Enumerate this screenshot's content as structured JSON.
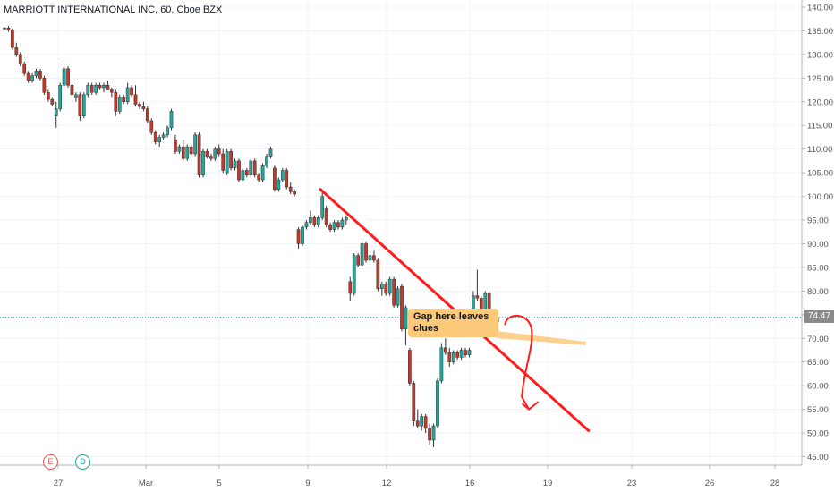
{
  "header": {
    "title": "MARRIOTT INTERNATIONAL INC, 60, Cboe BZX"
  },
  "last_price_label": "74.47",
  "annotation": {
    "text": "Gap here leaves clues"
  },
  "events": [
    {
      "label": "E",
      "color": "#e0564e"
    },
    {
      "label": "D",
      "color": "#26a69a"
    }
  ],
  "colors": {
    "up": "#26a69a",
    "down": "#c0392b",
    "drawing": "#ff1c1c",
    "callout": "#fbc97a",
    "price_line": "#26a69a"
  },
  "chart_data": {
    "type": "candlestick",
    "title": "MARRIOTT INTERNATIONAL INC, 60, Cboe BZX",
    "ylim": [
      43,
      140
    ],
    "y_ticks": [
      "45.00",
      "50.00",
      "55.00",
      "60.00",
      "65.00",
      "70.00",
      "75.00",
      "80.00",
      "85.00",
      "90.00",
      "95.00",
      "100.00",
      "105.00",
      "110.00",
      "115.00",
      "120.00",
      "125.00",
      "130.00",
      "135.00",
      "140.00"
    ],
    "x_ticks": [
      "27",
      "Mar",
      "5",
      "9",
      "12",
      "16",
      "19",
      "23",
      "26",
      "28"
    ],
    "last_price": 74.47,
    "candles": [
      [
        135.5,
        135.8,
        135.2,
        135.6
      ],
      [
        135.6,
        136,
        134.8,
        135.2
      ],
      [
        135.2,
        135.5,
        131,
        131.5
      ],
      [
        131.5,
        132.5,
        129.5,
        130
      ],
      [
        130,
        130.5,
        127.5,
        128
      ],
      [
        128,
        128.5,
        125.5,
        126
      ],
      [
        126,
        126.5,
        124,
        124.5
      ],
      [
        124.5,
        126,
        124,
        125.5
      ],
      [
        125.5,
        127,
        125,
        126.5
      ],
      [
        126.5,
        127,
        124.5,
        125
      ],
      [
        125,
        125.5,
        121.5,
        122
      ],
      [
        122,
        122.5,
        120,
        120.5
      ],
      [
        120.5,
        121,
        119,
        119.5
      ],
      [
        117,
        120,
        114.5,
        118.5
      ],
      [
        118.5,
        124,
        118,
        123.5
      ],
      [
        123.5,
        128,
        123,
        127
      ],
      [
        127,
        127.5,
        123,
        123.5
      ],
      [
        123.5,
        124,
        121,
        121.5
      ],
      [
        121,
        122,
        120,
        121.5
      ],
      [
        121.5,
        122,
        116,
        117
      ],
      [
        117,
        122,
        116.5,
        121.5
      ],
      [
        121.5,
        124,
        121,
        123.5
      ],
      [
        123.5,
        124,
        121.5,
        122
      ],
      [
        122,
        124,
        121.5,
        123.5
      ],
      [
        123.5,
        124,
        122.5,
        123
      ],
      [
        123,
        124,
        122,
        123.5
      ],
      [
        123.5,
        124.5,
        122.5,
        122.5
      ],
      [
        122.5,
        123,
        121,
        122
      ],
      [
        122,
        122.5,
        117,
        118
      ],
      [
        118,
        121.5,
        117.5,
        121
      ],
      [
        121,
        121.5,
        119.5,
        120
      ],
      [
        120,
        124,
        119.5,
        123
      ],
      [
        123,
        123.5,
        121,
        121.5
      ],
      [
        121.5,
        123.5,
        119,
        119.5
      ],
      [
        119.5,
        120,
        118.5,
        119
      ],
      [
        119,
        120,
        118,
        118.5
      ],
      [
        118.5,
        119,
        115.5,
        116
      ],
      [
        116,
        116.5,
        113,
        113.5
      ],
      [
        113.5,
        114,
        111,
        111.5
      ],
      [
        111.5,
        113,
        110.5,
        112.5
      ],
      [
        112.5,
        113.5,
        112,
        113
      ],
      [
        113,
        115,
        112.5,
        114.5
      ],
      [
        114.5,
        118.5,
        114,
        118
      ],
      [
        112,
        113,
        109,
        109.5
      ],
      [
        109.5,
        111,
        109,
        110.5
      ],
      [
        110.5,
        112,
        107.5,
        108
      ],
      [
        108,
        111,
        107.5,
        110.5
      ],
      [
        110.5,
        111,
        108.5,
        109
      ],
      [
        109,
        113.5,
        108.5,
        113
      ],
      [
        113,
        113.5,
        104,
        104.5
      ],
      [
        104.5,
        110,
        104,
        109.5
      ],
      [
        109.5,
        110,
        108,
        108.5
      ],
      [
        108.5,
        109,
        107.5,
        108
      ],
      [
        108,
        110.5,
        107.5,
        110
      ],
      [
        110,
        111,
        108.5,
        109
      ],
      [
        109,
        110,
        105,
        105.5
      ],
      [
        105,
        110,
        104.5,
        109.5
      ],
      [
        109.5,
        110,
        105.5,
        106
      ],
      [
        106,
        108,
        105.5,
        107.5
      ],
      [
        107.5,
        108,
        103,
        103.5
      ],
      [
        103.5,
        106,
        103,
        105.5
      ],
      [
        105.5,
        106,
        104,
        104.5
      ],
      [
        104.5,
        108,
        104,
        107.5
      ],
      [
        107.5,
        108,
        104,
        104.5
      ],
      [
        104.5,
        105,
        103,
        103.5
      ],
      [
        103.5,
        107,
        103,
        106.5
      ],
      [
        106.5,
        109,
        106,
        108.5
      ],
      [
        108.5,
        110.5,
        108,
        110
      ],
      [
        106,
        106.5,
        101,
        101.5
      ],
      [
        101.5,
        104,
        101,
        103.5
      ],
      [
        103.5,
        106,
        103,
        105.5
      ],
      [
        105.5,
        106,
        101.5,
        102
      ],
      [
        102,
        103,
        100.5,
        101
      ],
      [
        101,
        101.5,
        100,
        100.5
      ],
      [
        93,
        93.5,
        89,
        90
      ],
      [
        90,
        94,
        89.5,
        93.5
      ],
      [
        93.5,
        95,
        93,
        94.5
      ],
      [
        94.5,
        97,
        94,
        95.5
      ],
      [
        95.5,
        96,
        93.5,
        94
      ],
      [
        94,
        96,
        93.5,
        95.5
      ],
      [
        95.5,
        101,
        95,
        100
      ],
      [
        97.5,
        98,
        93.5,
        94
      ],
      [
        94,
        94.5,
        92.5,
        93
      ],
      [
        93,
        95,
        92.5,
        94.5
      ],
      [
        94.5,
        95,
        93,
        93.5
      ],
      [
        93.5,
        95.5,
        93,
        95
      ],
      [
        95,
        96,
        94,
        95.5
      ],
      [
        82,
        83,
        78,
        79.5
      ],
      [
        79.5,
        88,
        79,
        87.5
      ],
      [
        87.5,
        88,
        85,
        85.5
      ],
      [
        85.5,
        90.5,
        85,
        90
      ],
      [
        90,
        90.5,
        86,
        86.5
      ],
      [
        86.5,
        88,
        86,
        87.5
      ],
      [
        87.5,
        88.5,
        86,
        86.5
      ],
      [
        86.5,
        87,
        80,
        80.5
      ],
      [
        80.5,
        82,
        79,
        81.5
      ],
      [
        81.5,
        82,
        79,
        79.5
      ],
      [
        79.5,
        83,
        79,
        82.5
      ],
      [
        82.5,
        83,
        76.5,
        77
      ],
      [
        77,
        81,
        76.5,
        80.5
      ],
      [
        81,
        81.5,
        71.5,
        72
      ],
      [
        72,
        77,
        68.5,
        76.5
      ],
      [
        67.5,
        68,
        60,
        60.5
      ],
      [
        60.5,
        61,
        51.5,
        52.5
      ],
      [
        52.5,
        55,
        51,
        51.5
      ],
      [
        51.5,
        54,
        50.5,
        53.5
      ],
      [
        53.5,
        54,
        50,
        51
      ],
      [
        51,
        52,
        47.5,
        48.5
      ],
      [
        48.5,
        52,
        47,
        51.5
      ],
      [
        51.5,
        61.5,
        51,
        61
      ],
      [
        61,
        69,
        60.5,
        68
      ],
      [
        68,
        70,
        66.5,
        67
      ],
      [
        67,
        68,
        64,
        65
      ],
      [
        65,
        67.5,
        64.5,
        67
      ],
      [
        67,
        67.5,
        65.5,
        66
      ],
      [
        66,
        68,
        65.5,
        67.5
      ],
      [
        67.5,
        68,
        66,
        66.5
      ],
      [
        66.5,
        68,
        66,
        67.5
      ],
      [
        73,
        80,
        72.5,
        79
      ],
      [
        79,
        84.5,
        78,
        78.5
      ],
      [
        78.5,
        79,
        73,
        74
      ],
      [
        74,
        80,
        73.5,
        79.5
      ],
      [
        79.5,
        80,
        74.5,
        75
      ],
      [
        75,
        76,
        72.5,
        73.5
      ],
      [
        73.5,
        74.5,
        71.5,
        74.5
      ]
    ],
    "drawings": [
      {
        "type": "trendline",
        "from": {
          "bar": 79.5,
          "price": 101.5
        },
        "to": {
          "bar": 147,
          "price": 50.5
        }
      },
      {
        "type": "arrow_curve",
        "from": {
          "bar": 126,
          "price": 74.5
        },
        "to": {
          "bar": 132,
          "price": 55
        }
      }
    ]
  }
}
